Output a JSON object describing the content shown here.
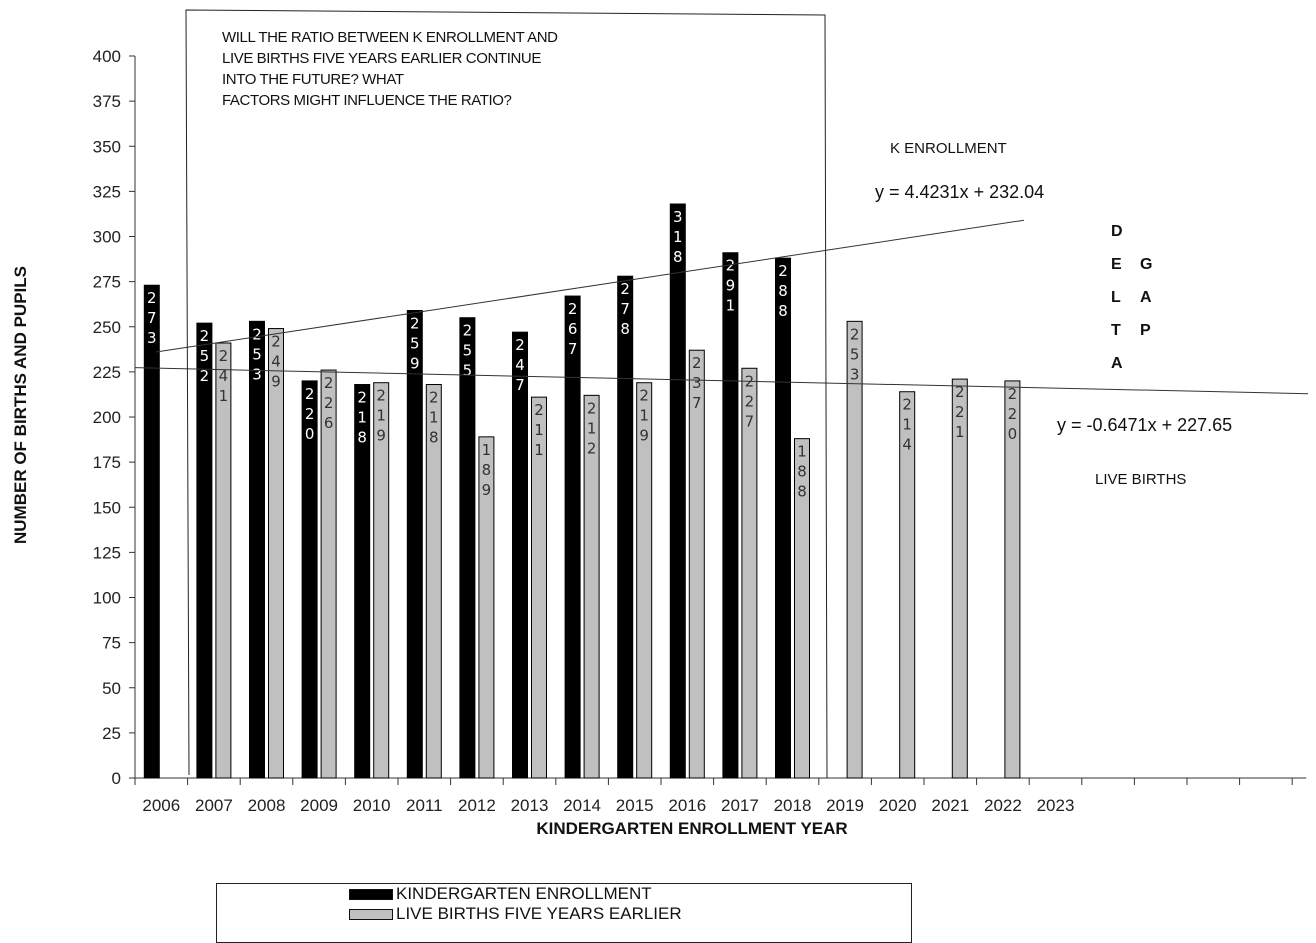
{
  "chart_data": {
    "type": "bar",
    "ylabel": "NUMBER OF BIRTHS AND PUPILS",
    "xlabel": "KINDERGARTEN ENROLLMENT YEAR",
    "ylim": [
      0,
      400
    ],
    "yticks": [
      0,
      25,
      50,
      75,
      100,
      125,
      150,
      175,
      200,
      225,
      250,
      275,
      300,
      325,
      350,
      375,
      400
    ],
    "categories": [
      "2006",
      "2007",
      "2008",
      "2009",
      "2010",
      "2011",
      "2012",
      "2013",
      "2014",
      "2015",
      "2016",
      "2017",
      "2018",
      "2019",
      "2020",
      "2021",
      "2022",
      "2023"
    ],
    "series": [
      {
        "name": "KINDERGARTEN ENROLLMENT",
        "color": "#000000",
        "values": [
          273,
          252,
          253,
          220,
          218,
          259,
          255,
          247,
          267,
          278,
          318,
          291,
          288,
          null,
          null,
          null,
          null,
          null
        ]
      },
      {
        "name": "LIVE BIRTHS FIVE YEARS EARLIER",
        "color": "#c0c0c0",
        "values": [
          null,
          241,
          249,
          226,
          219,
          218,
          189,
          211,
          212,
          219,
          237,
          227,
          188,
          253,
          214,
          221,
          220,
          null
        ]
      }
    ],
    "trendlines": [
      {
        "label": "K ENROLLMENT",
        "equation": "y = 4.4231x + 232.04",
        "slope": 4.4231,
        "intercept": 232.04
      },
      {
        "label": "LIVE BIRTHS",
        "equation": "y = -0.6471x + 227.65",
        "slope": -0.6471,
        "intercept": 227.65
      }
    ],
    "annotation_lines": [
      "WILL THE RATIO BETWEEN K ENROLLMENT AND",
      "LIVE BIRTHS FIVE YEARS EARLIER CONTINUE",
      "INTO THE FUTURE?  WHAT",
      "FACTORS MIGHT INFLUENCE THE RATIO?"
    ],
    "side_words": [
      [
        "D",
        "E",
        "L",
        "T",
        "A"
      ],
      [
        "G",
        "A",
        "P"
      ]
    ],
    "legend_position": "bottom",
    "grid": false
  }
}
